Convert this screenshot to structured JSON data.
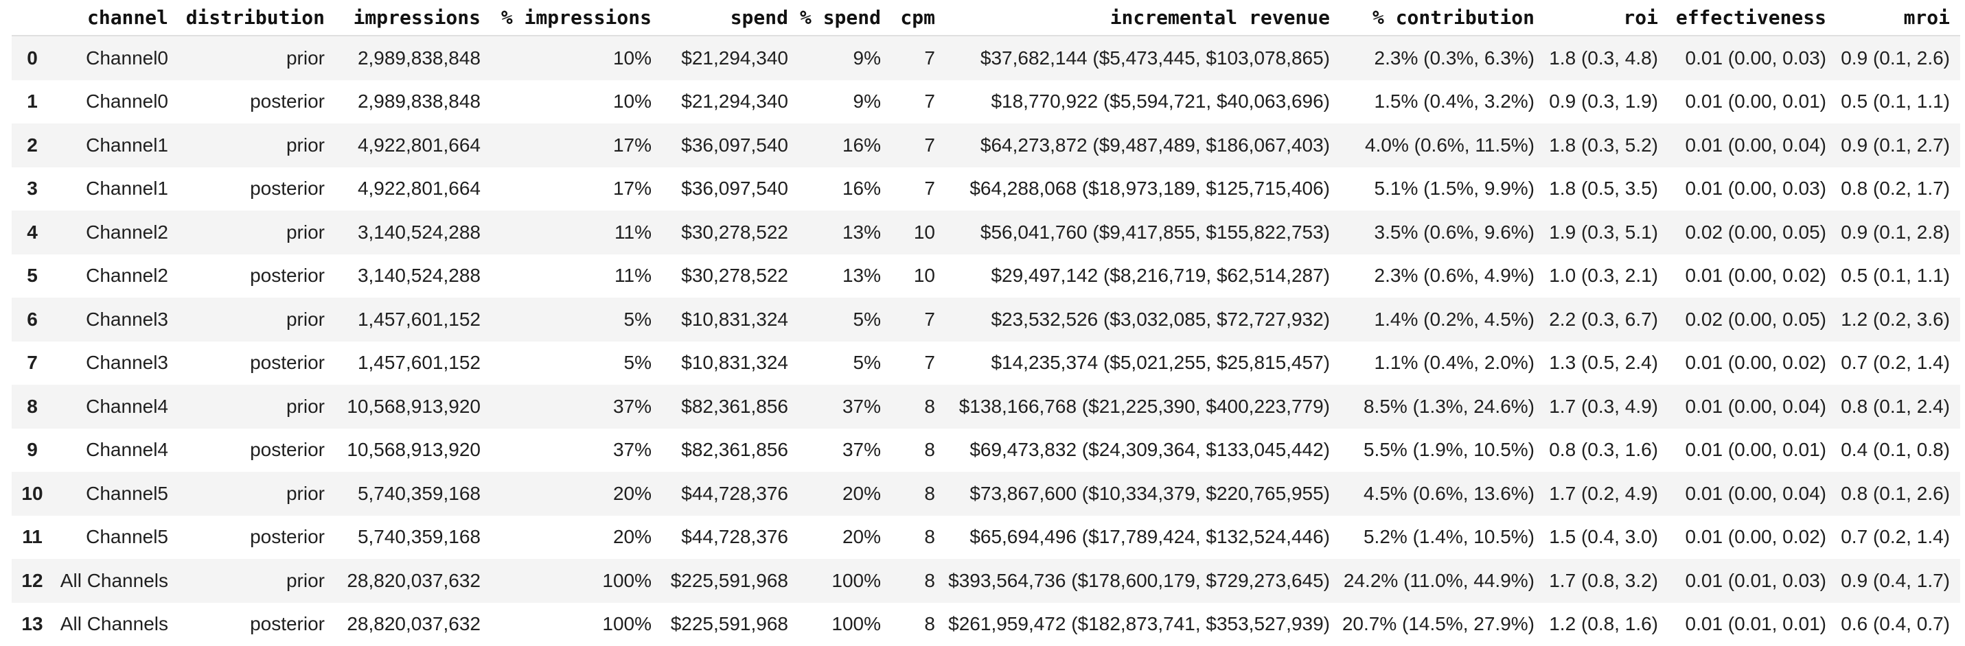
{
  "style": {
    "background": "#ffffff",
    "stripe_color": "#f4f4f4",
    "rule_color": "#dfdfdf",
    "text_color": "#1f1f1f",
    "header_text_color": "#111111"
  },
  "chart_data": {
    "type": "table",
    "columns": [
      "",
      "channel",
      "distribution",
      "impressions",
      "% impressions",
      "spend",
      "% spend",
      "cpm",
      "incremental revenue",
      "% contribution",
      "roi",
      "effectiveness",
      "mroi"
    ],
    "rows": [
      [
        "0",
        "Channel0",
        "prior",
        "2,989,838,848",
        "10%",
        "$21,294,340",
        "9%",
        "7",
        "$37,682,144 ($5,473,445, $103,078,865)",
        "2.3% (0.3%, 6.3%)",
        "1.8 (0.3, 4.8)",
        "0.01 (0.00, 0.03)",
        "0.9 (0.1, 2.6)"
      ],
      [
        "1",
        "Channel0",
        "posterior",
        "2,989,838,848",
        "10%",
        "$21,294,340",
        "9%",
        "7",
        "$18,770,922 ($5,594,721, $40,063,696)",
        "1.5% (0.4%, 3.2%)",
        "0.9 (0.3, 1.9)",
        "0.01 (0.00, 0.01)",
        "0.5 (0.1, 1.1)"
      ],
      [
        "2",
        "Channel1",
        "prior",
        "4,922,801,664",
        "17%",
        "$36,097,540",
        "16%",
        "7",
        "$64,273,872 ($9,487,489, $186,067,403)",
        "4.0% (0.6%, 11.5%)",
        "1.8 (0.3, 5.2)",
        "0.01 (0.00, 0.04)",
        "0.9 (0.1, 2.7)"
      ],
      [
        "3",
        "Channel1",
        "posterior",
        "4,922,801,664",
        "17%",
        "$36,097,540",
        "16%",
        "7",
        "$64,288,068 ($18,973,189, $125,715,406)",
        "5.1% (1.5%, 9.9%)",
        "1.8 (0.5, 3.5)",
        "0.01 (0.00, 0.03)",
        "0.8 (0.2, 1.7)"
      ],
      [
        "4",
        "Channel2",
        "prior",
        "3,140,524,288",
        "11%",
        "$30,278,522",
        "13%",
        "10",
        "$56,041,760 ($9,417,855, $155,822,753)",
        "3.5% (0.6%, 9.6%)",
        "1.9 (0.3, 5.1)",
        "0.02 (0.00, 0.05)",
        "0.9 (0.1, 2.8)"
      ],
      [
        "5",
        "Channel2",
        "posterior",
        "3,140,524,288",
        "11%",
        "$30,278,522",
        "13%",
        "10",
        "$29,497,142 ($8,216,719, $62,514,287)",
        "2.3% (0.6%, 4.9%)",
        "1.0 (0.3, 2.1)",
        "0.01 (0.00, 0.02)",
        "0.5 (0.1, 1.1)"
      ],
      [
        "6",
        "Channel3",
        "prior",
        "1,457,601,152",
        "5%",
        "$10,831,324",
        "5%",
        "7",
        "$23,532,526 ($3,032,085, $72,727,932)",
        "1.4% (0.2%, 4.5%)",
        "2.2 (0.3, 6.7)",
        "0.02 (0.00, 0.05)",
        "1.2 (0.2, 3.6)"
      ],
      [
        "7",
        "Channel3",
        "posterior",
        "1,457,601,152",
        "5%",
        "$10,831,324",
        "5%",
        "7",
        "$14,235,374 ($5,021,255, $25,815,457)",
        "1.1% (0.4%, 2.0%)",
        "1.3 (0.5, 2.4)",
        "0.01 (0.00, 0.02)",
        "0.7 (0.2, 1.4)"
      ],
      [
        "8",
        "Channel4",
        "prior",
        "10,568,913,920",
        "37%",
        "$82,361,856",
        "37%",
        "8",
        "$138,166,768 ($21,225,390, $400,223,779)",
        "8.5% (1.3%, 24.6%)",
        "1.7 (0.3, 4.9)",
        "0.01 (0.00, 0.04)",
        "0.8 (0.1, 2.4)"
      ],
      [
        "9",
        "Channel4",
        "posterior",
        "10,568,913,920",
        "37%",
        "$82,361,856",
        "37%",
        "8",
        "$69,473,832 ($24,309,364, $133,045,442)",
        "5.5% (1.9%, 10.5%)",
        "0.8 (0.3, 1.6)",
        "0.01 (0.00, 0.01)",
        "0.4 (0.1, 0.8)"
      ],
      [
        "10",
        "Channel5",
        "prior",
        "5,740,359,168",
        "20%",
        "$44,728,376",
        "20%",
        "8",
        "$73,867,600 ($10,334,379, $220,765,955)",
        "4.5% (0.6%, 13.6%)",
        "1.7 (0.2, 4.9)",
        "0.01 (0.00, 0.04)",
        "0.8 (0.1, 2.6)"
      ],
      [
        "11",
        "Channel5",
        "posterior",
        "5,740,359,168",
        "20%",
        "$44,728,376",
        "20%",
        "8",
        "$65,694,496 ($17,789,424, $132,524,446)",
        "5.2% (1.4%, 10.5%)",
        "1.5 (0.4, 3.0)",
        "0.01 (0.00, 0.02)",
        "0.7 (0.2, 1.4)"
      ],
      [
        "12",
        "All Channels",
        "prior",
        "28,820,037,632",
        "100%",
        "$225,591,968",
        "100%",
        "8",
        "$393,564,736 ($178,600,179, $729,273,645)",
        "24.2% (11.0%, 44.9%)",
        "1.7 (0.8, 3.2)",
        "0.01 (0.01, 0.03)",
        "0.9 (0.4, 1.7)"
      ],
      [
        "13",
        "All Channels",
        "posterior",
        "28,820,037,632",
        "100%",
        "$225,591,968",
        "100%",
        "8",
        "$261,959,472 ($182,873,741, $353,527,939)",
        "20.7% (14.5%, 27.9%)",
        "1.2 (0.8, 1.6)",
        "0.01 (0.01, 0.01)",
        "0.6 (0.4, 0.7)"
      ]
    ]
  }
}
